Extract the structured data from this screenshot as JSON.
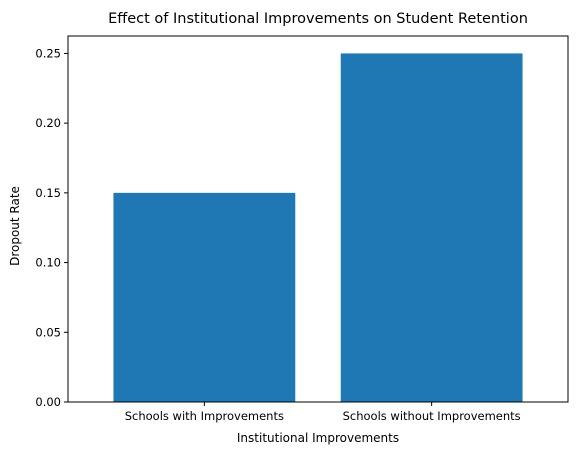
{
  "chart_data": {
    "type": "bar",
    "title": "Effect of Institutional Improvements on Student Retention",
    "xlabel": "Institutional Improvements",
    "ylabel": "Dropout Rate",
    "categories": [
      "Schools with Improvements",
      "Schools without Improvements"
    ],
    "values": [
      0.15,
      0.25
    ],
    "ylim": [
      0,
      0.2625
    ],
    "yticks": [
      0.0,
      0.05,
      0.1,
      0.15,
      0.2,
      0.25
    ],
    "ytick_labels": [
      "0.00",
      "0.05",
      "0.10",
      "0.15",
      "0.20",
      "0.25"
    ],
    "grid": false,
    "legend": "none",
    "bar_color": "#1f77b4"
  }
}
